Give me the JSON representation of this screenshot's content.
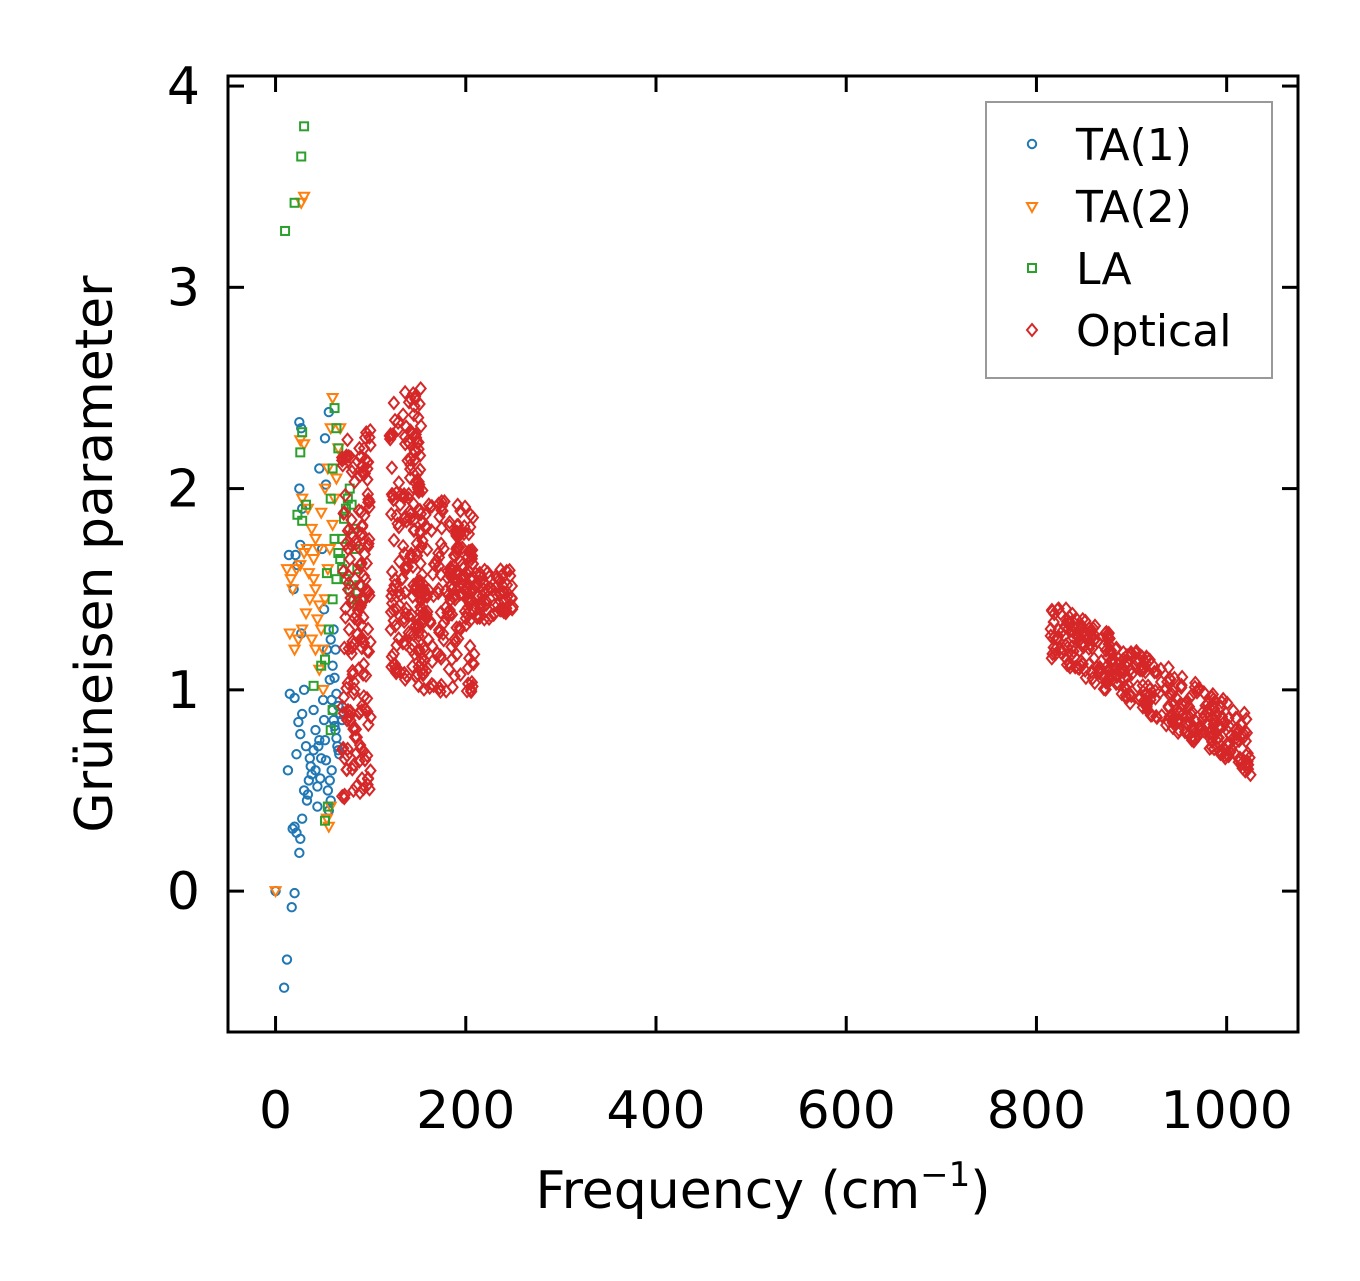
{
  "chart_data": {
    "type": "scatter",
    "title": "",
    "xlabel": "Frequency (cm",
    "xlabel_sup": "−1",
    "xlabel_close": ")",
    "ylabel": "Grüneisen parameter",
    "xlim": [
      -50,
      1075
    ],
    "ylim": [
      -0.7,
      4.05
    ],
    "xticks": [
      0,
      200,
      400,
      600,
      800,
      1000
    ],
    "xtick_labels": [
      "0",
      "200",
      "400",
      "600",
      "800",
      "1000"
    ],
    "yticks": [
      0,
      1,
      2,
      3,
      4
    ],
    "ytick_labels": [
      "0",
      "1",
      "2",
      "3",
      "4"
    ],
    "grid": false,
    "legend_position": "top-right",
    "series": [
      {
        "name": "TA(1)",
        "marker": "circle",
        "color": "#1f77b4",
        "points": [
          [
            0,
            0
          ],
          [
            20,
            -0.01
          ],
          [
            17,
            -0.08
          ],
          [
            12,
            -0.34
          ],
          [
            9,
            -0.48
          ],
          [
            13,
            0.6
          ],
          [
            20,
            0.32
          ],
          [
            22,
            0.29
          ],
          [
            26,
            0.26
          ],
          [
            25,
            0.19
          ],
          [
            28,
            0.36
          ],
          [
            18,
            0.31
          ],
          [
            30,
            0.5
          ],
          [
            33,
            0.45
          ],
          [
            35,
            0.55
          ],
          [
            37,
            0.62
          ],
          [
            40,
            0.7
          ],
          [
            42,
            0.6
          ],
          [
            44,
            0.52
          ],
          [
            46,
            0.75
          ],
          [
            48,
            0.66
          ],
          [
            24,
            0.84
          ],
          [
            28,
            0.88
          ],
          [
            20,
            0.96
          ],
          [
            30,
            1.0
          ],
          [
            15,
            0.98
          ],
          [
            26,
            0.78
          ],
          [
            22,
            0.68
          ],
          [
            32,
            0.72
          ],
          [
            19,
            1.5
          ],
          [
            23,
            1.62
          ],
          [
            26,
            1.72
          ],
          [
            28,
            1.9
          ],
          [
            25,
            2.0
          ],
          [
            27,
            2.3
          ],
          [
            25,
            2.33
          ],
          [
            21,
            1.67
          ],
          [
            14,
            1.67
          ],
          [
            27,
            1.28
          ],
          [
            46,
            2.1
          ],
          [
            52,
            2.25
          ],
          [
            56,
            2.38
          ],
          [
            53,
            2.02
          ],
          [
            49,
            1.7
          ],
          [
            51,
            1.4
          ],
          [
            54,
            1.2
          ],
          [
            57,
            1.05
          ],
          [
            59,
            0.95
          ],
          [
            60,
            0.9
          ],
          [
            61,
            0.85
          ],
          [
            62,
            0.82
          ],
          [
            63,
            0.8
          ],
          [
            64,
            0.76
          ],
          [
            65,
            0.72
          ],
          [
            66,
            0.7
          ],
          [
            67,
            0.68
          ],
          [
            55,
            0.5
          ],
          [
            57,
            0.55
          ],
          [
            59,
            0.6
          ],
          [
            58,
            0.45
          ],
          [
            56,
            0.4
          ],
          [
            53,
            0.65
          ],
          [
            52,
            0.75
          ],
          [
            51,
            0.85
          ],
          [
            50,
            0.95
          ],
          [
            60,
            1.12
          ],
          [
            62,
            1.06
          ],
          [
            64,
            0.98
          ],
          [
            66,
            0.92
          ],
          [
            68,
            0.88
          ],
          [
            70,
            0.85
          ],
          [
            63,
            1.2
          ],
          [
            61,
            1.3
          ],
          [
            58,
            1.25
          ],
          [
            44,
            0.42
          ],
          [
            38,
            0.58
          ],
          [
            36,
            0.66
          ],
          [
            34,
            0.48
          ],
          [
            42,
            0.8
          ],
          [
            40,
            0.9
          ],
          [
            47,
            0.56
          ],
          [
            45,
            0.72
          ]
        ]
      },
      {
        "name": "TA(2)",
        "marker": "triangle-down",
        "color": "#ff7f0e",
        "points": [
          [
            0,
            0
          ],
          [
            30,
            3.45
          ],
          [
            27,
            3.42
          ],
          [
            26,
            2.24
          ],
          [
            30,
            2.22
          ],
          [
            28,
            1.95
          ],
          [
            34,
            1.9
          ],
          [
            38,
            1.8
          ],
          [
            42,
            1.75
          ],
          [
            45,
            1.7
          ],
          [
            48,
            1.88
          ],
          [
            52,
            2.0
          ],
          [
            55,
            2.1
          ],
          [
            58,
            2.3
          ],
          [
            60,
            2.45
          ],
          [
            40,
            1.55
          ],
          [
            36,
            1.45
          ],
          [
            32,
            1.38
          ],
          [
            28,
            1.3
          ],
          [
            24,
            1.25
          ],
          [
            20,
            1.2
          ],
          [
            15,
            1.28
          ],
          [
            18,
            1.5
          ],
          [
            22,
            1.6
          ],
          [
            26,
            1.62
          ],
          [
            44,
            1.35
          ],
          [
            48,
            1.3
          ],
          [
            50,
            1.2
          ],
          [
            52,
            1.45
          ],
          [
            55,
            1.6
          ],
          [
            57,
            1.7
          ],
          [
            60,
            1.82
          ],
          [
            62,
            1.95
          ],
          [
            64,
            2.05
          ],
          [
            66,
            2.2
          ],
          [
            68,
            2.3
          ],
          [
            56,
            0.32
          ],
          [
            54,
            0.36
          ],
          [
            58,
            0.42
          ],
          [
            40,
            1.65
          ],
          [
            42,
            1.5
          ],
          [
            46,
            1.42
          ],
          [
            35,
            1.58
          ],
          [
            30,
            1.68
          ],
          [
            33,
            1.7
          ],
          [
            16,
            1.55
          ],
          [
            12,
            1.6
          ],
          [
            38,
            1.25
          ],
          [
            42,
            1.2
          ],
          [
            46,
            1.1
          ],
          [
            50,
            1.0
          ]
        ]
      },
      {
        "name": "LA",
        "marker": "square",
        "color": "#2ca02c",
        "points": [
          [
            30,
            3.8
          ],
          [
            27,
            3.65
          ],
          [
            20,
            3.42
          ],
          [
            10,
            3.28
          ],
          [
            28,
            2.28
          ],
          [
            26,
            2.18
          ],
          [
            23,
            1.87
          ],
          [
            28,
            1.84
          ],
          [
            32,
            1.92
          ],
          [
            40,
            1.02
          ],
          [
            48,
            1.12
          ],
          [
            52,
            1.15
          ],
          [
            56,
            1.3
          ],
          [
            60,
            1.45
          ],
          [
            64,
            1.55
          ],
          [
            68,
            1.65
          ],
          [
            70,
            1.75
          ],
          [
            72,
            1.85
          ],
          [
            74,
            1.9
          ],
          [
            76,
            1.95
          ],
          [
            78,
            2.0
          ],
          [
            80,
            1.92
          ],
          [
            82,
            1.8
          ],
          [
            84,
            1.7
          ],
          [
            86,
            1.6
          ],
          [
            88,
            1.52
          ],
          [
            90,
            1.45
          ],
          [
            62,
            2.4
          ],
          [
            64,
            2.3
          ],
          [
            66,
            2.2
          ],
          [
            60,
            2.1
          ],
          [
            58,
            1.95
          ],
          [
            62,
            1.75
          ],
          [
            66,
            1.68
          ],
          [
            70,
            1.6
          ],
          [
            74,
            1.55
          ],
          [
            78,
            1.5
          ],
          [
            82,
            1.45
          ],
          [
            86,
            1.42
          ],
          [
            54,
            1.58
          ],
          [
            52,
            0.35
          ],
          [
            55,
            0.42
          ],
          [
            58,
            0.8
          ],
          [
            60,
            0.9
          ]
        ]
      },
      {
        "name": "Optical",
        "marker": "diamond",
        "color": "#d62728",
        "clusters": [
          {
            "x": [
              70,
              100
            ],
            "y": [
              0.46,
              2.3
            ]
          },
          {
            "x": [
              120,
              155
            ],
            "y": [
              1.05,
              2.5
            ]
          },
          {
            "x": [
              150,
              210
            ],
            "y": [
              0.98,
              1.95
            ]
          },
          {
            "x": [
              180,
              250
            ],
            "y": [
              1.35,
              1.6
            ]
          },
          {
            "x": [
              815,
              1025
            ],
            "y": [
              0.75,
              1.45
            ]
          }
        ]
      }
    ]
  }
}
